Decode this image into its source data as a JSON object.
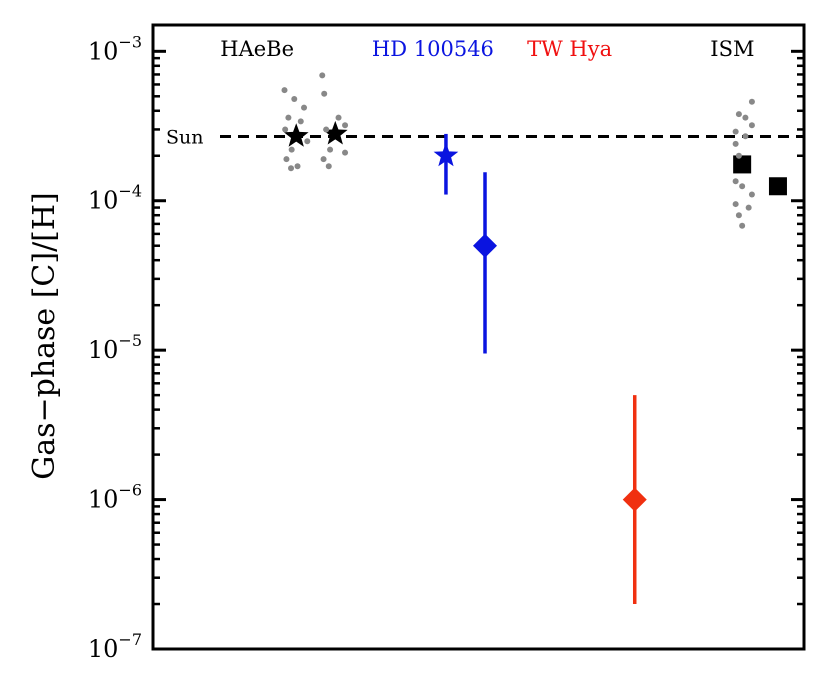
{
  "chart_data": {
    "type": "scatter",
    "title": "",
    "ylabel": "Gas−phase [C]/[H]",
    "yscale": "log",
    "ylim": [
      1e-07,
      0.0015
    ],
    "xlim": [
      0,
      10
    ],
    "grid": false,
    "y_ticks": [
      {
        "value": 0.001,
        "base": "10",
        "exp": "−3"
      },
      {
        "value": 0.0001,
        "base": "10",
        "exp": "−4"
      },
      {
        "value": 1e-05,
        "base": "10",
        "exp": "−5"
      },
      {
        "value": 1e-06,
        "base": "10",
        "exp": "−6"
      },
      {
        "value": 1e-07,
        "base": "10",
        "exp": "−7"
      }
    ],
    "reference_line": {
      "label": "Sun",
      "value": 0.000269,
      "style": "dashed",
      "color": "#000000"
    },
    "groups": [
      {
        "label": "HAeBe",
        "x": 1.6,
        "color": "#000000"
      },
      {
        "label": "HD 100546",
        "x": 4.3,
        "color": "#0a14e0"
      },
      {
        "label": "TW Hya",
        "x": 6.4,
        "color": "#f01010"
      },
      {
        "label": "ISM",
        "x": 8.9,
        "color": "#000000"
      }
    ],
    "series": [
      {
        "group": "HAeBe",
        "marker": "star",
        "color": "#000000",
        "points": [
          {
            "x": 2.2,
            "y": 0.00027
          },
          {
            "x": 2.8,
            "y": 0.00028
          }
        ]
      },
      {
        "group": "HAeBe",
        "marker": "dot",
        "color": "#888888",
        "points": [
          {
            "x": 2.02,
            "y": 0.00055
          },
          {
            "x": 2.17,
            "y": 0.00048
          },
          {
            "x": 2.32,
            "y": 0.00042
          },
          {
            "x": 2.08,
            "y": 0.00036
          },
          {
            "x": 2.27,
            "y": 0.00034
          },
          {
            "x": 2.03,
            "y": 0.0003
          },
          {
            "x": 2.37,
            "y": 0.00025
          },
          {
            "x": 2.13,
            "y": 0.00022
          },
          {
            "x": 2.05,
            "y": 0.00019
          },
          {
            "x": 2.22,
            "y": 0.00017
          },
          {
            "x": 2.12,
            "y": 0.000165
          },
          {
            "x": 2.6,
            "y": 0.00069
          },
          {
            "x": 2.63,
            "y": 0.00052
          },
          {
            "x": 2.85,
            "y": 0.00036
          },
          {
            "x": 2.95,
            "y": 0.00032
          },
          {
            "x": 2.66,
            "y": 0.0003
          },
          {
            "x": 2.72,
            "y": 0.00022
          },
          {
            "x": 2.95,
            "y": 0.00021
          },
          {
            "x": 2.62,
            "y": 0.00019
          },
          {
            "x": 2.7,
            "y": 0.00017
          }
        ]
      },
      {
        "group": "HD 100546",
        "marker": "star",
        "color": "#0a14e0",
        "points": [
          {
            "x": 4.5,
            "y": 0.0002,
            "y_err": [
              0.00011,
              0.00028
            ]
          }
        ]
      },
      {
        "group": "HD 100546",
        "marker": "diamond",
        "color": "#0a14e0",
        "points": [
          {
            "x": 5.1,
            "y": 5e-05,
            "y_err": [
              9.5e-06,
              0.000155
            ]
          }
        ]
      },
      {
        "group": "TW Hya",
        "marker": "diamond",
        "color": "#f03010",
        "points": [
          {
            "x": 7.4,
            "y": 1e-06,
            "y_err": [
              2e-07,
              5e-06
            ]
          }
        ]
      },
      {
        "group": "ISM",
        "marker": "square",
        "color": "#000000",
        "points": [
          {
            "x": 9.05,
            "y": 0.000175
          },
          {
            "x": 9.6,
            "y": 0.000125
          }
        ]
      },
      {
        "group": "ISM",
        "marker": "dot",
        "color": "#888888",
        "points": [
          {
            "x": 9.2,
            "y": 0.00046
          },
          {
            "x": 9.0,
            "y": 0.00038
          },
          {
            "x": 9.1,
            "y": 0.00036
          },
          {
            "x": 9.2,
            "y": 0.00032
          },
          {
            "x": 8.95,
            "y": 0.00029
          },
          {
            "x": 9.1,
            "y": 0.00027
          },
          {
            "x": 8.95,
            "y": 0.00024
          },
          {
            "x": 9.0,
            "y": 0.0002
          },
          {
            "x": 8.95,
            "y": 0.000135
          },
          {
            "x": 9.05,
            "y": 0.000125
          },
          {
            "x": 9.2,
            "y": 0.00011
          },
          {
            "x": 8.95,
            "y": 9.5e-05
          },
          {
            "x": 9.15,
            "y": 9e-05
          },
          {
            "x": 9.0,
            "y": 8e-05
          },
          {
            "x": 9.05,
            "y": 6.8e-05
          }
        ]
      }
    ]
  }
}
